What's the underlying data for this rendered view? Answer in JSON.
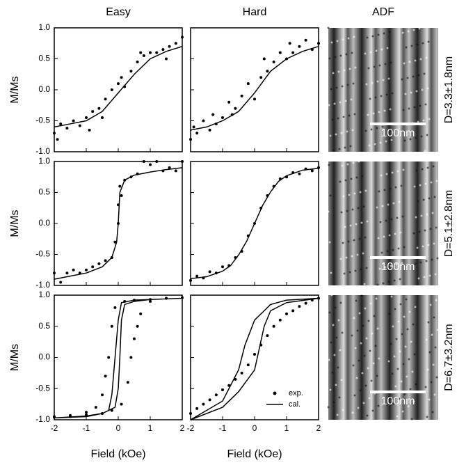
{
  "column_titles": [
    "Easy",
    "Hard",
    "ADF"
  ],
  "chart_data": [
    {
      "type": "scatter",
      "ylabel": "M/Ms",
      "xlim": [
        -2,
        2
      ],
      "ylim": [
        -1,
        1
      ],
      "xticks": [
        -2,
        -1,
        0,
        1,
        2
      ],
      "xtick_labels": false,
      "yticks": [
        {
          "value": -1,
          "label": "-1.0"
        },
        {
          "value": -0.5,
          "label": "-0.5"
        },
        {
          "value": 0,
          "label": "0.0"
        },
        {
          "value": 0.5,
          "label": "0.5"
        },
        {
          "value": 1,
          "label": "1.0"
        }
      ],
      "ytick_labels": true,
      "series": [
        {
          "mode": "markers",
          "color": "#000000",
          "x": [
            -2,
            -1.9,
            -1.8,
            -1.6,
            -1.4,
            -1.2,
            -1,
            -0.9,
            -0.8,
            -0.6,
            -0.5,
            -0.4,
            -0.2,
            0,
            0.1,
            0.2,
            0.4,
            0.6,
            0.7,
            0.8,
            1,
            1.2,
            1.4,
            1.5,
            1.6,
            1.8,
            2
          ],
          "values": [
            -0.7,
            -0.8,
            -0.55,
            -0.62,
            -0.5,
            -0.58,
            -0.45,
            -0.65,
            -0.35,
            -0.3,
            -0.45,
            -0.15,
            0,
            0.1,
            0.2,
            0.05,
            0.3,
            0.45,
            0.6,
            0.55,
            0.6,
            0.6,
            0.65,
            0.5,
            0.7,
            0.75,
            0.85
          ]
        },
        {
          "mode": "lines",
          "color": "#000000",
          "x": [
            -2,
            -1.5,
            -1,
            -0.5,
            0,
            0.5,
            1,
            1.5,
            2
          ],
          "values": [
            -0.6,
            -0.55,
            -0.5,
            -0.35,
            -0.05,
            0.25,
            0.5,
            0.62,
            0.7
          ]
        }
      ]
    },
    {
      "type": "scatter",
      "xlim": [
        -2,
        2
      ],
      "ylim": [
        -1,
        1
      ],
      "xticks": [
        -2,
        -1,
        0,
        1,
        2
      ],
      "xtick_labels": false,
      "yticks": [
        -1,
        -0.5,
        0,
        0.5,
        1
      ],
      "ytick_labels": false,
      "series": [
        {
          "mode": "markers",
          "color": "#000000",
          "x": [
            -2,
            -1.9,
            -1.8,
            -1.6,
            -1.4,
            -1.3,
            -1.2,
            -1,
            -0.8,
            -0.7,
            -0.6,
            -0.4,
            -0.2,
            0,
            0.2,
            0.3,
            0.4,
            0.6,
            0.8,
            1,
            1.1,
            1.2,
            1.4,
            1.6,
            1.8,
            2
          ],
          "values": [
            -0.8,
            -0.6,
            -0.7,
            -0.5,
            -0.65,
            -0.4,
            -0.55,
            -0.45,
            -0.2,
            -0.4,
            -0.3,
            -0.1,
            0.1,
            -0.15,
            0.2,
            0.5,
            0.3,
            0.45,
            0.6,
            0.5,
            0.75,
            0.6,
            0.7,
            0.8,
            0.65,
            0.75
          ]
        },
        {
          "mode": "lines",
          "color": "#000000",
          "x": [
            -2,
            -1.5,
            -1,
            -0.5,
            0,
            0.5,
            1,
            1.5,
            2
          ],
          "values": [
            -0.65,
            -0.6,
            -0.5,
            -0.35,
            -0.05,
            0.3,
            0.5,
            0.62,
            0.7
          ]
        }
      ]
    },
    {
      "type": "scatter",
      "ylabel": "M/Ms",
      "xlim": [
        -2,
        2
      ],
      "ylim": [
        -1,
        1
      ],
      "xticks": [
        -2,
        -1,
        0,
        1,
        2
      ],
      "xtick_labels": false,
      "yticks": [
        {
          "value": -1,
          "label": "-1.0"
        },
        {
          "value": -0.5,
          "label": "-0.5"
        },
        {
          "value": 0,
          "label": "0.0"
        },
        {
          "value": 0.5,
          "label": "0.5"
        },
        {
          "value": 1,
          "label": "1.0"
        }
      ],
      "ytick_labels": true,
      "series": [
        {
          "mode": "markers",
          "color": "#000000",
          "x": [
            -2,
            -1.8,
            -1.6,
            -1.4,
            -1.2,
            -1,
            -0.8,
            -0.6,
            -0.4,
            -0.2,
            -0.1,
            0,
            0,
            0.05,
            0.1,
            0.2,
            0.4,
            0.6,
            0.8,
            1,
            1.2,
            1.4,
            1.6,
            1.8,
            2
          ],
          "values": [
            -0.8,
            -0.95,
            -0.8,
            -0.75,
            -0.8,
            -0.75,
            -0.7,
            -0.65,
            -0.6,
            -0.55,
            -0.3,
            0,
            0.3,
            0.6,
            0.45,
            0.7,
            0.75,
            0.8,
            1,
            0.95,
            1,
            0.85,
            0.9,
            0.85,
            1
          ]
        },
        {
          "mode": "lines",
          "color": "#000000",
          "x": [
            -2,
            -1.5,
            -1,
            -0.5,
            -0.2,
            -0.05,
            0,
            0.05,
            0.2,
            0.5,
            1,
            1.5,
            2
          ],
          "values": [
            -0.9,
            -0.85,
            -0.8,
            -0.7,
            -0.55,
            -0.3,
            0,
            0.5,
            0.7,
            0.78,
            0.83,
            0.87,
            0.9
          ]
        }
      ]
    },
    {
      "type": "scatter",
      "xlim": [
        -2,
        2
      ],
      "ylim": [
        -1,
        1
      ],
      "xticks": [
        -2,
        -1,
        0,
        1,
        2
      ],
      "xtick_labels": false,
      "yticks": [
        -1,
        -0.5,
        0,
        0.5,
        1
      ],
      "ytick_labels": false,
      "series": [
        {
          "mode": "markers",
          "color": "#000000",
          "x": [
            -2,
            -1.8,
            -1.6,
            -1.4,
            -1.2,
            -1,
            -0.8,
            -0.6,
            -0.4,
            -0.2,
            0,
            0.2,
            0.4,
            0.6,
            0.8,
            1,
            1.2,
            1.4,
            1.6,
            1.8,
            2
          ],
          "values": [
            -0.92,
            -0.85,
            -0.88,
            -0.78,
            -0.8,
            -0.7,
            -0.68,
            -0.55,
            -0.45,
            -0.2,
            0,
            0.25,
            0.45,
            0.6,
            0.72,
            0.75,
            0.82,
            0.8,
            0.88,
            0.85,
            0.9
          ]
        },
        {
          "mode": "lines",
          "color": "#000000",
          "x": [
            -2,
            -1.5,
            -1,
            -0.75,
            -0.5,
            -0.25,
            0,
            0.25,
            0.5,
            0.75,
            1,
            1.5,
            2
          ],
          "values": [
            -0.89,
            -0.86,
            -0.77,
            -0.68,
            -0.51,
            -0.29,
            0,
            0.29,
            0.51,
            0.68,
            0.77,
            0.86,
            0.89
          ]
        }
      ]
    },
    {
      "type": "scatter",
      "ylabel": "M/Ms",
      "xlabel": "Field (kOe)",
      "xlim": [
        -2,
        2
      ],
      "ylim": [
        -1,
        1
      ],
      "xticks": [
        -2,
        -1,
        0,
        1,
        2
      ],
      "xtick_labels": true,
      "yticks": [
        {
          "value": -1,
          "label": "-1.0"
        },
        {
          "value": -0.5,
          "label": "-0.5"
        },
        {
          "value": 0,
          "label": "0.0"
        },
        {
          "value": 0.5,
          "label": "0.5"
        },
        {
          "value": 1,
          "label": "1.0"
        }
      ],
      "ytick_labels": true,
      "series": [
        {
          "mode": "markers",
          "color": "#000000",
          "x": [
            -2,
            -1.5,
            -1,
            -0.7,
            -0.5,
            -0.4,
            -0.3,
            -0.2,
            -0.1,
            0.2,
            0.5,
            1,
            1.5,
            2,
            1.5,
            1,
            0.7,
            0.6,
            0.5,
            0.4,
            0.3,
            0.1,
            -0.2,
            -0.5,
            -1,
            -1.5,
            -2
          ],
          "values": [
            -0.95,
            -0.93,
            -0.88,
            -0.8,
            -0.6,
            -0.3,
            0,
            0.5,
            0.8,
            0.9,
            0.92,
            0.93,
            0.95,
            0.96,
            0.95,
            0.9,
            0.7,
            0.5,
            0.3,
            0,
            -0.4,
            -0.75,
            -0.85,
            -0.9,
            -0.92,
            -0.95,
            -0.96
          ]
        },
        {
          "mode": "lines",
          "color": "#000000",
          "x": [
            -2,
            -1,
            -0.5,
            -0.1,
            0,
            0.05,
            0.1,
            0.2,
            0.5,
            1,
            2,
            1,
            0.5,
            0.1,
            0,
            -0.1,
            -0.2,
            -0.3,
            -0.5,
            -1,
            -2
          ],
          "values": [
            -0.97,
            -0.95,
            -0.9,
            -0.8,
            -0.5,
            0,
            0.6,
            0.85,
            0.9,
            0.93,
            0.95,
            0.93,
            0.92,
            0.88,
            0.6,
            0,
            -0.6,
            -0.85,
            -0.9,
            -0.94,
            -0.97
          ]
        }
      ]
    },
    {
      "type": "scatter",
      "xlabel": "Field (kOe)",
      "xlim": [
        -2,
        2
      ],
      "ylim": [
        -1,
        1
      ],
      "xticks": [
        -2,
        -1,
        0,
        1,
        2
      ],
      "xtick_labels": true,
      "yticks": [
        -1,
        -0.5,
        0,
        0.5,
        1
      ],
      "ytick_labels": false,
      "legend": "lower right",
      "series": [
        {
          "name": "exp.",
          "mode": "markers",
          "color": "#000000",
          "x": [
            -2,
            -1.8,
            -1.6,
            -1.4,
            -1.2,
            -1,
            -0.8,
            -0.6,
            -0.4,
            -0.2,
            0,
            0.2,
            0.4,
            0.6,
            0.8,
            1,
            1.2,
            1.4,
            1.6,
            1.8,
            2
          ],
          "values": [
            -0.9,
            -0.82,
            -0.75,
            -0.68,
            -0.6,
            -0.52,
            -0.45,
            -0.35,
            -0.25,
            -0.12,
            0.05,
            0.2,
            0.35,
            0.5,
            0.6,
            0.7,
            0.75,
            0.82,
            0.87,
            0.92,
            0.95
          ]
        },
        {
          "name": "cal.",
          "mode": "lines",
          "color": "#000000",
          "x": [
            -2,
            -1,
            -0.5,
            0,
            0.3,
            0.5,
            1,
            2,
            1,
            0.5,
            0,
            -0.3,
            -0.5,
            -1,
            -2
          ],
          "values": [
            -1,
            -0.8,
            -0.55,
            -0.2,
            0.5,
            0.75,
            0.88,
            0.95,
            0.92,
            0.85,
            0.6,
            0.2,
            -0.2,
            -0.7,
            -1
          ]
        }
      ]
    }
  ],
  "images": [
    {
      "scale_label": "100nm",
      "caption": "D=3.3±1.8nm"
    },
    {
      "scale_label": "100nm",
      "caption": "D=5.1±2.8nm"
    },
    {
      "scale_label": "100nm",
      "caption": "D=6.7±3.2nm"
    }
  ]
}
